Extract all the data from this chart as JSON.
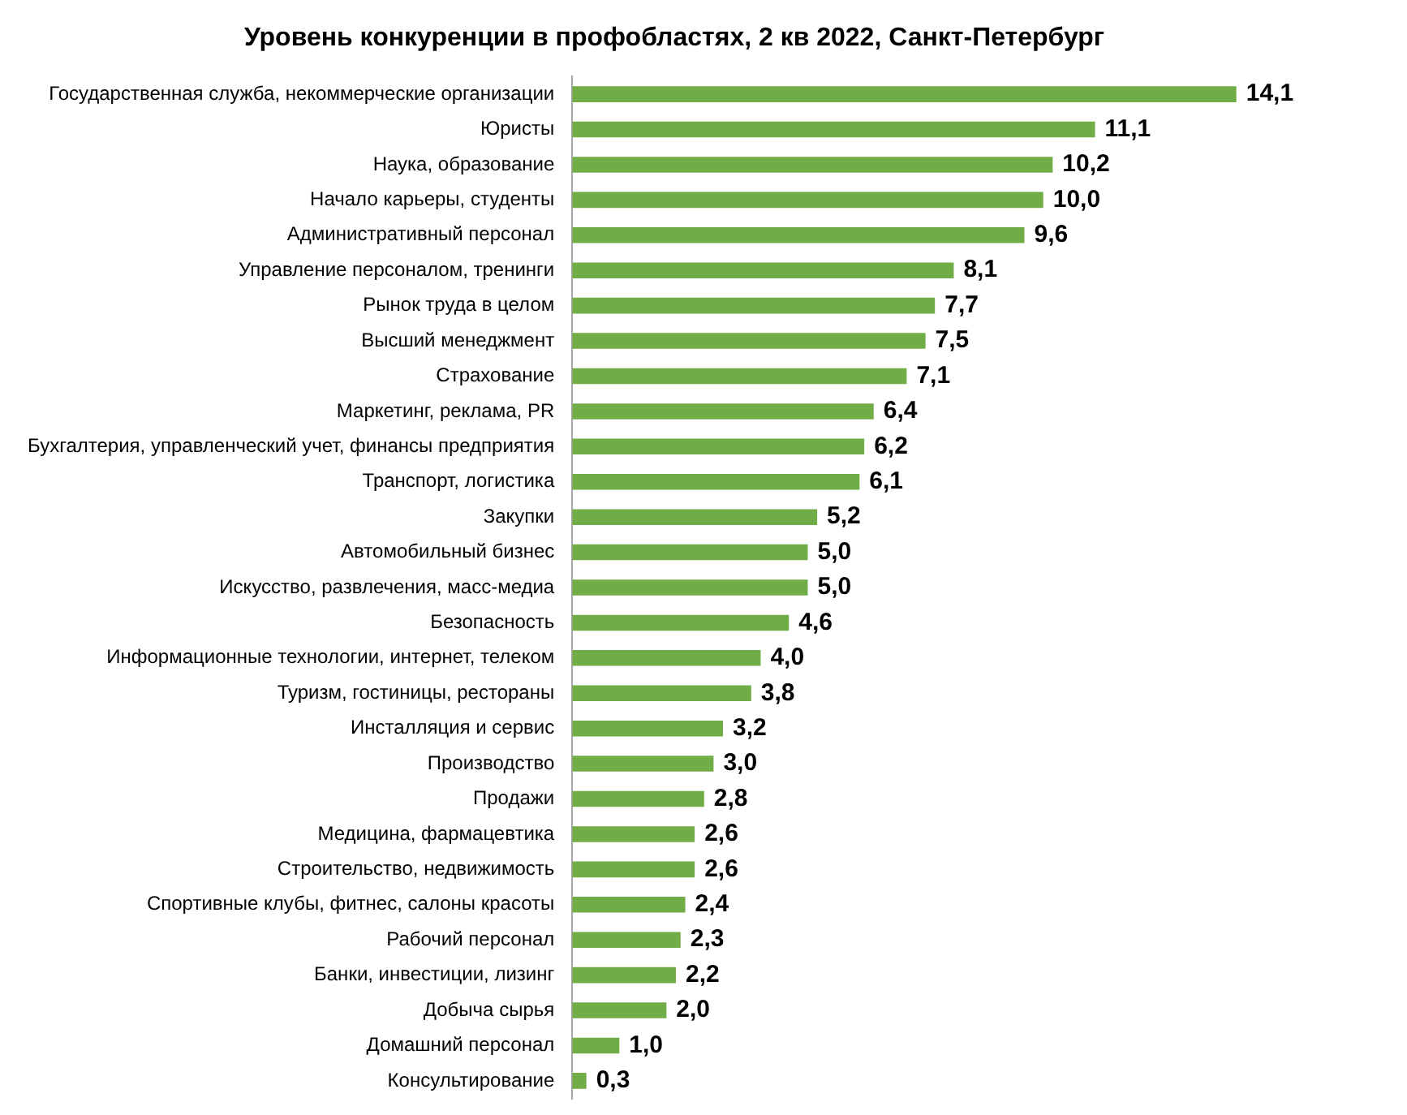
{
  "chart_data": {
    "type": "bar",
    "orientation": "horizontal",
    "title": "Уровень конкуренции в профобластях, 2 кв 2022, Санкт-Петербург",
    "categories": [
      "Государственная служба, некоммерческие организации",
      "Юристы",
      "Наука, образование",
      "Начало карьеры, студенты",
      "Административный персонал",
      "Управление персоналом, тренинги",
      "Рынок труда в целом",
      "Высший менеджмент",
      "Страхование",
      "Маркетинг, реклама, PR",
      "Бухгалтерия, управленческий учет, финансы предприятия",
      "Транспорт, логистика",
      "Закупки",
      "Автомобильный бизнес",
      "Искусство, развлечения, масс-медиа",
      "Безопасность",
      "Информационные технологии, интернет, телеком",
      "Туризм, гостиницы, рестораны",
      "Инсталляция и сервис",
      "Производство",
      "Продажи",
      "Медицина, фармацевтика",
      "Строительство, недвижимость",
      "Спортивные клубы, фитнес, салоны красоты",
      "Рабочий персонал",
      "Банки, инвестиции, лизинг",
      "Добыча сырья",
      "Домашний персонал",
      "Консультирование"
    ],
    "values": [
      14.1,
      11.1,
      10.2,
      10.0,
      9.6,
      8.1,
      7.7,
      7.5,
      7.1,
      6.4,
      6.2,
      6.1,
      5.2,
      5.0,
      5.0,
      4.6,
      4.0,
      3.8,
      3.2,
      3.0,
      2.8,
      2.6,
      2.6,
      2.4,
      2.3,
      2.2,
      2.0,
      1.0,
      0.3
    ],
    "value_labels": [
      "14,1",
      "11,1",
      "10,2",
      "10,0",
      "9,6",
      "8,1",
      "7,7",
      "7,5",
      "7,1",
      "6,4",
      "6,2",
      "6,1",
      "5,2",
      "5,0",
      "5,0",
      "4,6",
      "4,0",
      "3,8",
      "3,2",
      "3,0",
      "2,8",
      "2,6",
      "2,6",
      "2,4",
      "2,3",
      "2,2",
      "2,0",
      "1,0",
      "0,3"
    ],
    "color": "#70ad47",
    "legend": false,
    "tick_labels": "y"
  }
}
